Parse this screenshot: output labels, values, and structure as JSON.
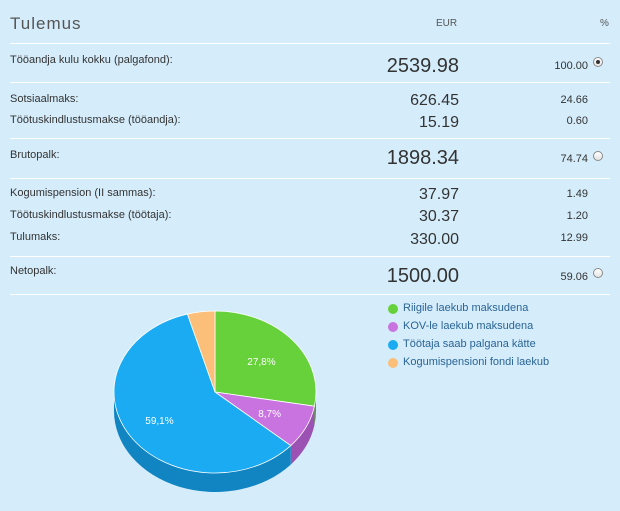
{
  "header": {
    "title": "Tulemus",
    "col_eur": "EUR",
    "col_pct": "%"
  },
  "rows": {
    "employer_cost": {
      "label": "Tööandja kulu kokku (palgafond):",
      "value": "2539.98",
      "pct": "100.00",
      "selected": true
    },
    "social_tax": {
      "label": "Sotsiaalmaks:",
      "value": "626.45",
      "pct": "24.66"
    },
    "unemp_employer": {
      "label": "Töötuskindlustusmakse (tööandja):",
      "value": "15.19",
      "pct": "0.60"
    },
    "gross": {
      "label": "Brutopalk:",
      "value": "1898.34",
      "pct": "74.74",
      "selected": false
    },
    "pension": {
      "label": "Kogumispension (II sammas):",
      "value": "37.97",
      "pct": "1.49"
    },
    "unemp_employee": {
      "label": "Töötuskindlustusmakse (töötaja):",
      "value": "30.37",
      "pct": "1.20"
    },
    "income_tax": {
      "label": "Tulumaks:",
      "value": "330.00",
      "pct": "12.99"
    },
    "net": {
      "label": "Netopalk:",
      "value": "1500.00",
      "pct": "59.06",
      "selected": false
    }
  },
  "chart_data": {
    "type": "pie",
    "slices": [
      {
        "name": "Riigile laekub maksudena",
        "value": 27.8,
        "label": "27,8%",
        "color": "#66d13b",
        "side": "#4aa825"
      },
      {
        "name": "KOV-le laekub maksudena",
        "value": 8.7,
        "label": "8,7%",
        "color": "#c873e0",
        "side": "#9c52b3"
      },
      {
        "name": "Töötaja saab palgana kätte",
        "value": 59.1,
        "label": "59,1%",
        "color": "#1aabf2",
        "side": "#1185c2"
      },
      {
        "name": "Kogumispensioni fondi laekub",
        "value": 4.4,
        "label": "",
        "color": "#fbbf79",
        "side": "#d99a55"
      }
    ],
    "legend_placement": "right"
  }
}
